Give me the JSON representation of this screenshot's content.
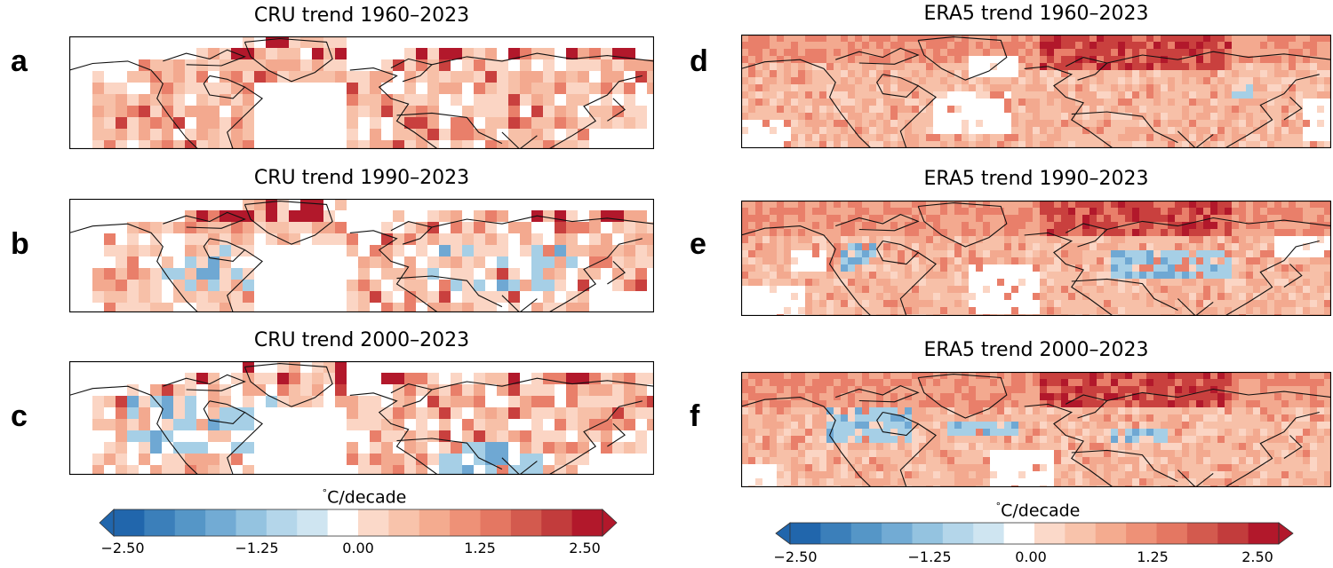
{
  "panels": [
    {
      "letter": "a",
      "title": "CRU trend 1960–2023",
      "source": "CRU",
      "period": "1960–2023"
    },
    {
      "letter": "b",
      "title": "CRU trend 1990–2023",
      "source": "CRU",
      "period": "1990–2023"
    },
    {
      "letter": "c",
      "title": "CRU trend 2000–2023",
      "source": "CRU",
      "period": "2000–2023"
    },
    {
      "letter": "d",
      "title": "ERA5 trend 1960–2023",
      "source": "ERA5",
      "period": "1960–2023"
    },
    {
      "letter": "e",
      "title": "ERA5 trend 1990–2023",
      "source": "ERA5",
      "period": "1990–2023"
    },
    {
      "letter": "f",
      "title": "ERA5 trend 2000–2023",
      "source": "ERA5",
      "period": "2000–2023"
    }
  ],
  "colorbars": [
    {
      "unit_degree": "°",
      "unit_text": "C/decade",
      "ticks": [
        "−2.50",
        "−1.25",
        "0.00",
        "1.25",
        "2.50"
      ]
    },
    {
      "unit_degree": "°",
      "unit_text": "C/decade",
      "ticks": [
        "−2.50",
        "−1.25",
        "0.00",
        "1.25",
        "2.50"
      ]
    }
  ],
  "colors": {
    "blue_dark": "#2166ac",
    "blue_light": "#a6cfe6",
    "white": "#ffffff",
    "red_light": "#f7c4ae",
    "red_mid": "#f09a80",
    "red_dark": "#b2182b"
  }
}
